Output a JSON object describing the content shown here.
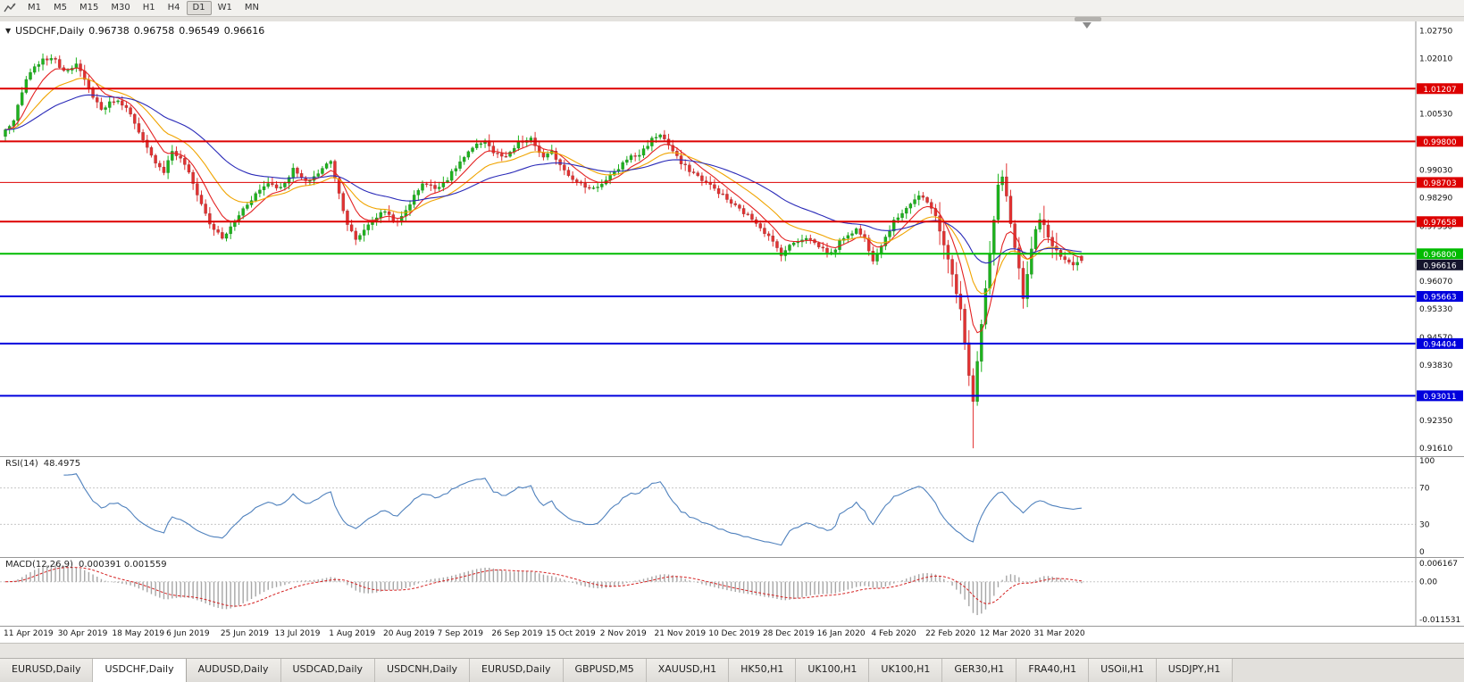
{
  "toolbar": {
    "timeframes": [
      "M1",
      "M5",
      "M15",
      "M30",
      "H1",
      "H4",
      "D1",
      "W1",
      "MN"
    ],
    "active": "D1"
  },
  "chart_header": {
    "symbol": "USDCHF,Daily",
    "open": "0.96738",
    "high": "0.96758",
    "low": "0.96549",
    "close": "0.96616"
  },
  "price_axis": {
    "ticks": [
      1.0275,
      1.0201,
      1.0053,
      0.9903,
      0.9829,
      0.9753,
      0.9607,
      0.9533,
      0.9457,
      0.9383,
      0.9235,
      0.9161
    ],
    "current": {
      "label": "0.96616",
      "bg": "#14142c",
      "text_color": "#ffffff"
    }
  },
  "levels": [
    {
      "price": 1.01207,
      "label": "1.01207",
      "color": "#dd0000",
      "width": 2
    },
    {
      "price": 0.998,
      "label": "0.99800",
      "color": "#dd0000",
      "width": 2
    },
    {
      "price": 0.98703,
      "label": "0.98703",
      "color": "#dd0000",
      "width": 1
    },
    {
      "price": 0.97658,
      "label": "0.97658",
      "color": "#dd0000",
      "width": 2
    },
    {
      "price": 0.968,
      "label": "0.96800",
      "color": "#00bb00",
      "width": 2
    },
    {
      "price": 0.95663,
      "label": "0.95663",
      "color": "#0000dd",
      "width": 2
    },
    {
      "price": 0.94404,
      "label": "0.94404",
      "color": "#0000dd",
      "width": 2
    },
    {
      "price": 0.93011,
      "label": "0.93011",
      "color": "#0000dd",
      "width": 2
    }
  ],
  "tabs": {
    "items": [
      "EURUSD,Daily",
      "USDCHF,Daily",
      "AUDUSD,Daily",
      "USDCAD,Daily",
      "USDCNH,Daily",
      "EURUSD,Daily",
      "GBPUSD,M5",
      "XAUUSD,H1",
      "HK50,H1",
      "UK100,H1",
      "UK100,H1",
      "GER30,H1",
      "FRA40,H1",
      "USOil,H1",
      "USDJPY,H1"
    ],
    "active_index": 1
  },
  "chart_data": {
    "type": "candlestick",
    "symbol": "USDCHF",
    "timeframe": "Daily",
    "bars": 259,
    "y_range": {
      "top": 1.03,
      "bottom": 0.914
    },
    "up_color": "#1db31d",
    "down_color": "#e23232",
    "candle_outline": "rgba(0,0,0,0.35)",
    "price_keyframes": [
      [
        0,
        1.001
      ],
      [
        2,
        1.0035
      ],
      [
        5,
        1.0145
      ],
      [
        8,
        1.019
      ],
      [
        11,
        1.0205
      ],
      [
        14,
        1.017
      ],
      [
        17,
        1.0185
      ],
      [
        20,
        1.012
      ],
      [
        23,
        1.0065
      ],
      [
        26,
        1.009
      ],
      [
        29,
        1.0075
      ],
      [
        32,
        1.0
      ],
      [
        35,
        0.994
      ],
      [
        38,
        0.99
      ],
      [
        40,
        0.9955
      ],
      [
        43,
        0.992
      ],
      [
        46,
        0.984
      ],
      [
        49,
        0.976
      ],
      [
        52,
        0.972
      ],
      [
        54,
        0.975
      ],
      [
        57,
        0.98
      ],
      [
        60,
        0.984
      ],
      [
        63,
        0.987
      ],
      [
        66,
        0.9855
      ],
      [
        69,
        0.9905
      ],
      [
        72,
        0.987
      ],
      [
        75,
        0.9895
      ],
      [
        78,
        0.993
      ],
      [
        80,
        0.984
      ],
      [
        82,
        0.976
      ],
      [
        84,
        0.9715
      ],
      [
        86,
        0.9745
      ],
      [
        88,
        0.977
      ],
      [
        91,
        0.9795
      ],
      [
        94,
        0.976
      ],
      [
        97,
        0.9815
      ],
      [
        100,
        0.987
      ],
      [
        103,
        0.9855
      ],
      [
        106,
        0.988
      ],
      [
        109,
        0.9925
      ],
      [
        112,
        0.996
      ],
      [
        115,
        0.9985
      ],
      [
        117,
        0.995
      ],
      [
        120,
        0.9935
      ],
      [
        123,
        0.9975
      ],
      [
        126,
        0.9985
      ],
      [
        129,
        0.9935
      ],
      [
        131,
        0.995
      ],
      [
        134,
        0.9905
      ],
      [
        137,
        0.987
      ],
      [
        140,
        0.9855
      ],
      [
        143,
        0.9865
      ],
      [
        146,
        0.9895
      ],
      [
        149,
        0.9935
      ],
      [
        152,
        0.9945
      ],
      [
        155,
        0.9985
      ],
      [
        157,
        1.0
      ],
      [
        159,
        0.997
      ],
      [
        162,
        0.992
      ],
      [
        165,
        0.9895
      ],
      [
        168,
        0.987
      ],
      [
        171,
        0.9845
      ],
      [
        174,
        0.9815
      ],
      [
        177,
        0.979
      ],
      [
        180,
        0.9765
      ],
      [
        183,
        0.9725
      ],
      [
        186,
        0.968
      ],
      [
        189,
        0.971
      ],
      [
        192,
        0.9725
      ],
      [
        195,
        0.97
      ],
      [
        198,
        0.968
      ],
      [
        201,
        0.9725
      ],
      [
        204,
        0.9745
      ],
      [
        206,
        0.972
      ],
      [
        208,
        0.9665
      ],
      [
        210,
        0.9705
      ],
      [
        213,
        0.9765
      ],
      [
        216,
        0.9805
      ],
      [
        219,
        0.9835
      ],
      [
        221,
        0.9815
      ],
      [
        223,
        0.9785
      ],
      [
        225,
        0.97
      ],
      [
        227,
        0.9625
      ],
      [
        229,
        0.953
      ],
      [
        230,
        0.944
      ],
      [
        231,
        0.936
      ],
      [
        232,
        0.929
      ],
      [
        233,
        0.9395
      ],
      [
        234,
        0.9495
      ],
      [
        235,
        0.959
      ],
      [
        236,
        0.968
      ],
      [
        237,
        0.977
      ],
      [
        238,
        0.986
      ],
      [
        239,
        0.9885
      ],
      [
        240,
        0.983
      ],
      [
        241,
        0.976
      ],
      [
        242,
        0.97
      ],
      [
        243,
        0.964
      ],
      [
        244,
        0.956
      ],
      [
        245,
        0.9625
      ],
      [
        246,
        0.969
      ],
      [
        247,
        0.974
      ],
      [
        248,
        0.977
      ],
      [
        249,
        0.9755
      ],
      [
        250,
        0.972
      ],
      [
        252,
        0.9685
      ],
      [
        254,
        0.966
      ],
      [
        256,
        0.9645
      ],
      [
        258,
        0.96616
      ]
    ],
    "spike": {
      "index": 232,
      "low": 0.9161
    },
    "last_candle": {
      "open": 0.96738,
      "high": 0.96758,
      "low": 0.96549,
      "close": 0.96616
    },
    "x_labels": [
      {
        "i": 0,
        "t": "11 Apr 2019"
      },
      {
        "i": 13,
        "t": "30 Apr 2019"
      },
      {
        "i": 26,
        "t": "18 May 2019"
      },
      {
        "i": 39,
        "t": "6 Jun 2019"
      },
      {
        "i": 52,
        "t": "25 Jun 2019"
      },
      {
        "i": 65,
        "t": "13 Jul 2019"
      },
      {
        "i": 78,
        "t": "1 Aug 2019"
      },
      {
        "i": 91,
        "t": "20 Aug 2019"
      },
      {
        "i": 104,
        "t": "7 Sep 2019"
      },
      {
        "i": 117,
        "t": "26 Sep 2019"
      },
      {
        "i": 130,
        "t": "15 Oct 2019"
      },
      {
        "i": 143,
        "t": "2 Nov 2019"
      },
      {
        "i": 156,
        "t": "21 Nov 2019"
      },
      {
        "i": 169,
        "t": "10 Dec 2019"
      },
      {
        "i": 182,
        "t": "28 Dec 2019"
      },
      {
        "i": 195,
        "t": "16 Jan 2020"
      },
      {
        "i": 208,
        "t": "4 Feb 2020"
      },
      {
        "i": 221,
        "t": "22 Feb 2020"
      },
      {
        "i": 234,
        "t": "12 Mar 2020"
      },
      {
        "i": 247,
        "t": "31 Mar 2020"
      }
    ],
    "moving_averages": [
      {
        "name": "fast-ma",
        "period": 8,
        "color": "#e32222"
      },
      {
        "name": "mid-ma",
        "period": 18,
        "color": "#f0a400"
      },
      {
        "name": "slow-ma",
        "period": 40,
        "color": "#2a2ab8"
      }
    ],
    "rsi": {
      "label": "RSI(14)",
      "value": "48.4975",
      "period": 14,
      "color": "#4f81bd",
      "axis_levels": [
        100,
        70,
        30,
        0
      ],
      "guide_levels": [
        70,
        30
      ]
    },
    "macd": {
      "label": "MACD(12,26,9)",
      "values": "0.000391 0.001559",
      "fast": 12,
      "slow": 26,
      "signal": 9,
      "hist_color": "#a6a6a6",
      "signal_color": "#d42020",
      "axis": {
        "max": 0.006167,
        "min": -0.011531,
        "max_label": "0.006167",
        "zero_label": "0.00",
        "min_label": "-0.011531"
      }
    }
  }
}
